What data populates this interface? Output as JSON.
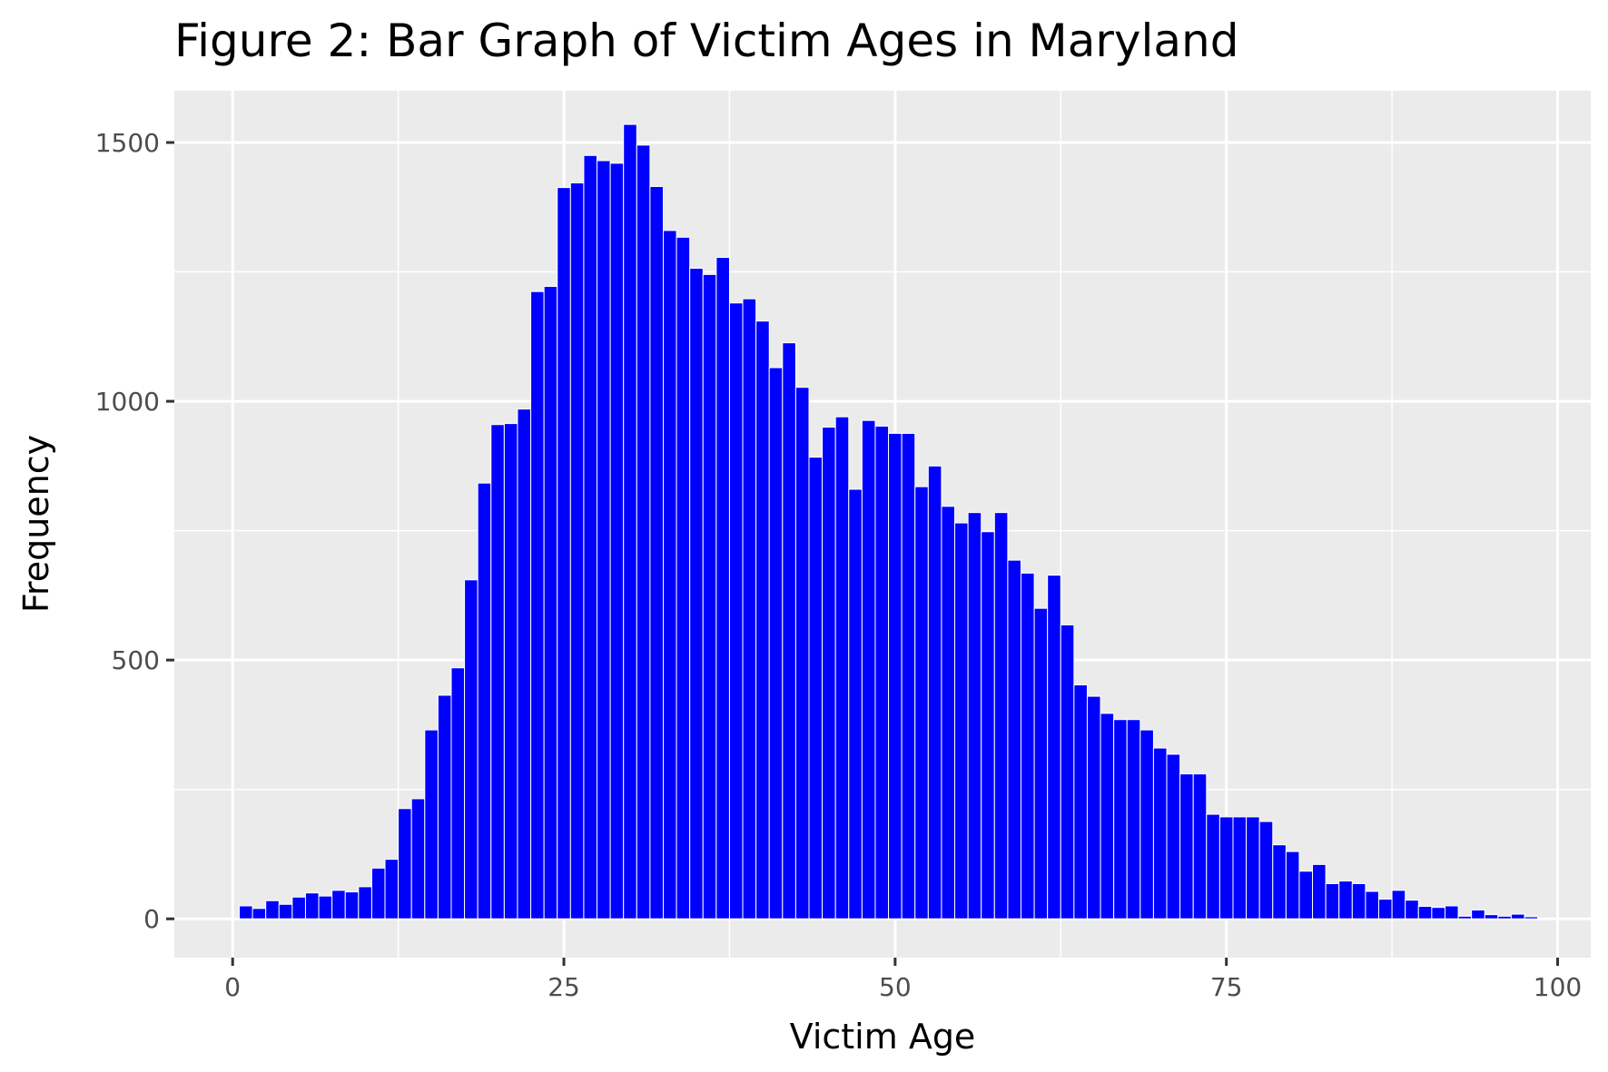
{
  "chart_data": {
    "type": "bar",
    "title": "Figure 2: Bar Graph of Victim Ages in Maryland",
    "xlabel": "Victim Age",
    "ylabel": "Frequency",
    "xlim": [
      -4.4,
      102.5
    ],
    "ylim": [
      -75,
      1600
    ],
    "x_ticks": [
      0,
      25,
      50,
      75,
      100
    ],
    "x_tick_labels": [
      "0",
      "25",
      "50",
      "75",
      "100"
    ],
    "x_minor_ticks": [
      12.5,
      37.5,
      62.5,
      87.5
    ],
    "y_ticks": [
      0,
      500,
      1000,
      1500
    ],
    "y_tick_labels": [
      "0",
      "500",
      "1000",
      "1500"
    ],
    "y_minor_ticks": [
      250,
      750,
      1250
    ],
    "grid": true,
    "legend": "none",
    "colors": {
      "bar_fill": "#0000ff",
      "bar_outline": "#ffffff",
      "panel_background": "#ebebeb",
      "grid_line": "#ffffff",
      "tick_text": "#4d4d4d",
      "tick_mark": "#333333"
    },
    "bins": {
      "x": [
        1,
        2,
        3,
        4,
        5,
        6,
        7,
        8,
        9,
        10,
        11,
        12,
        13,
        14,
        15,
        16,
        17,
        18,
        19,
        20,
        21,
        22,
        23,
        24,
        25,
        26,
        27,
        28,
        29,
        30,
        31,
        32,
        33,
        34,
        35,
        36,
        37,
        38,
        39,
        40,
        41,
        42,
        43,
        44,
        45,
        46,
        47,
        48,
        49,
        50,
        51,
        52,
        53,
        54,
        55,
        56,
        57,
        58,
        59,
        60,
        61,
        62,
        63,
        64,
        65,
        66,
        67,
        68,
        69,
        70,
        71,
        72,
        73,
        74,
        75,
        76,
        77,
        78,
        79,
        80,
        81,
        82,
        83,
        84,
        85,
        86,
        87,
        88,
        89,
        90,
        91,
        92,
        93,
        94,
        95,
        96,
        97,
        98
      ],
      "values": [
        25,
        20,
        35,
        28,
        42,
        50,
        44,
        55,
        52,
        62,
        98,
        115,
        213,
        232,
        365,
        432,
        485,
        655,
        842,
        955,
        957,
        985,
        1212,
        1222,
        1413,
        1422,
        1475,
        1465,
        1460,
        1535,
        1495,
        1415,
        1330,
        1317,
        1257,
        1245,
        1278,
        1190,
        1198,
        1155,
        1065,
        1113,
        1027,
        892,
        950,
        970,
        830,
        963,
        952,
        938,
        938,
        835,
        875,
        797,
        765,
        785,
        748,
        785,
        693,
        668,
        600,
        664,
        568,
        452,
        430,
        397,
        385,
        385,
        365,
        330,
        318,
        280,
        280,
        202,
        197,
        197,
        197,
        188,
        143,
        130,
        92,
        105,
        68,
        73,
        68,
        53,
        38,
        55,
        36,
        24,
        22,
        25,
        5,
        17,
        8,
        5,
        9,
        4
      ]
    }
  }
}
